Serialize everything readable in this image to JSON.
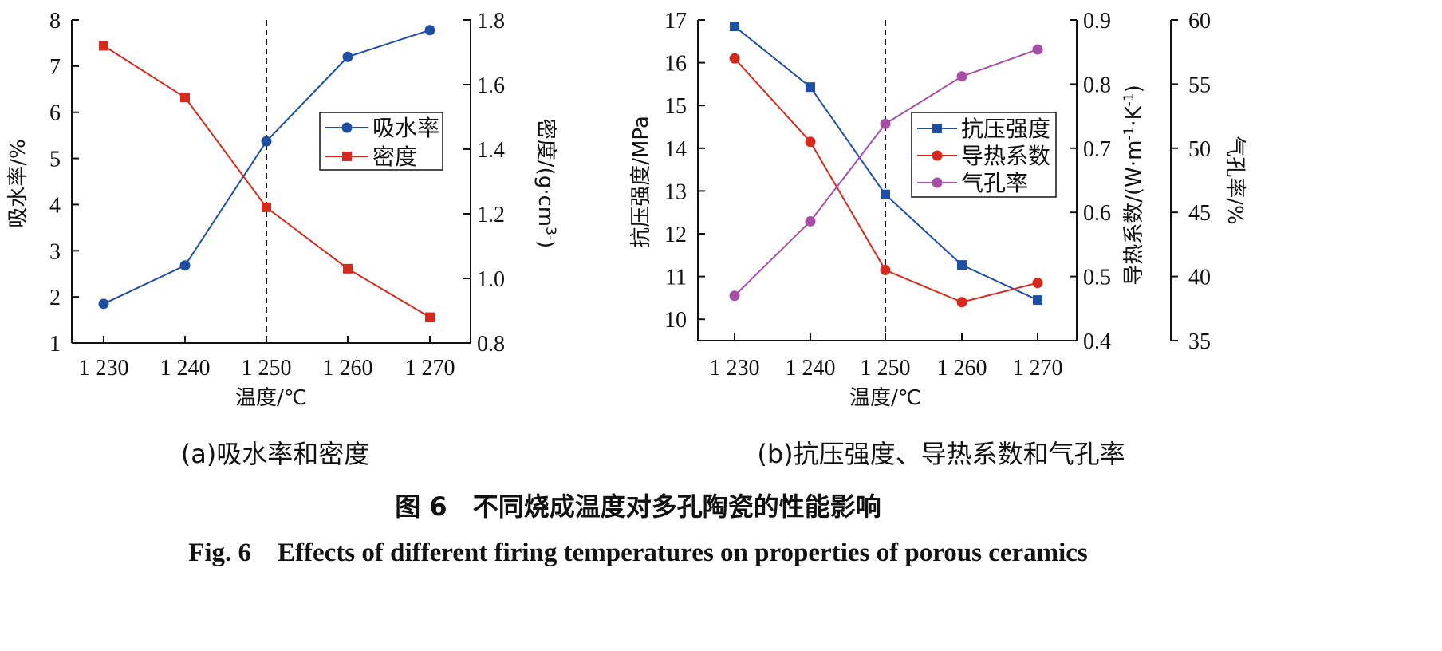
{
  "chart_data": [
    {
      "type": "line",
      "panel_label": "(a)吸水率和密度",
      "xlabel": "温度/℃",
      "categories": [
        "1 230",
        "1 240",
        "1 250",
        "1 260",
        "1 270"
      ],
      "y_left": {
        "label": "吸水率/%",
        "ylim": [
          1,
          8
        ],
        "ticks": [
          "1",
          "2",
          "3",
          "4",
          "5",
          "6",
          "7",
          "8"
        ]
      },
      "y_right": {
        "label": "密度/(g·cm",
        "label_sup": "3-",
        "label_end": ")",
        "ylim": [
          0.8,
          1.8
        ],
        "ticks": [
          "0.8",
          "1.0",
          "1.2",
          "1.4",
          "1.6",
          "1.8"
        ]
      },
      "dashed_vline_at": "1 250",
      "legend_position": "upper-right",
      "series": [
        {
          "name": "吸水率",
          "axis": "left",
          "color": "#1f4fa3",
          "marker": "circle",
          "values": [
            1.85,
            2.68,
            5.37,
            7.2,
            7.78
          ]
        },
        {
          "name": "密度",
          "axis": "right",
          "color": "#d62a1e",
          "marker": "square",
          "values": [
            1.72,
            1.56,
            1.22,
            1.03,
            0.88
          ]
        }
      ]
    },
    {
      "type": "line",
      "panel_label": "(b)抗压强度、导热系数和气孔率",
      "xlabel": "温度/℃",
      "categories": [
        "1 230",
        "1 240",
        "1 250",
        "1 260",
        "1 270"
      ],
      "y_left": {
        "label": "抗压强度/MPa",
        "ylim": [
          9.5,
          17
        ],
        "ticks": [
          "10",
          "11",
          "12",
          "13",
          "14",
          "15",
          "16",
          "17"
        ]
      },
      "y_right1": {
        "label": "导热系数/(W·m",
        "label_sup1": "-1",
        "label_mid": "·K",
        "label_sup2": "-1",
        "label_end": ")",
        "ylim": [
          0.4,
          0.9
        ],
        "ticks": [
          "0.4",
          "0.5",
          "0.6",
          "0.7",
          "0.8",
          "0.9"
        ]
      },
      "y_right2": {
        "label": "气孔率/%",
        "ylim": [
          35,
          60
        ],
        "ticks": [
          "35",
          "40",
          "45",
          "50",
          "55",
          "60"
        ]
      },
      "dashed_vline_at": "1 250",
      "legend_position": "center-right",
      "series": [
        {
          "name": "抗压强度",
          "axis": "left",
          "color": "#1f4fa3",
          "marker": "square",
          "values": [
            16.85,
            15.43,
            12.92,
            11.27,
            10.45
          ]
        },
        {
          "name": "导热系数",
          "axis": "right1",
          "color": "#d62a1e",
          "marker": "circle",
          "values": [
            0.84,
            0.71,
            0.51,
            0.46,
            0.49
          ]
        },
        {
          "name": "气孔率",
          "axis": "right2",
          "color": "#a64ea8",
          "marker": "circle",
          "values": [
            38.5,
            44.3,
            51.9,
            55.6,
            57.7
          ]
        }
      ]
    }
  ],
  "caption": {
    "zh": "图 6　不同烧成温度对多孔陶瓷的性能影响",
    "en": "Fig. 6　Effects of different firing temperatures on properties of porous ceramics"
  }
}
